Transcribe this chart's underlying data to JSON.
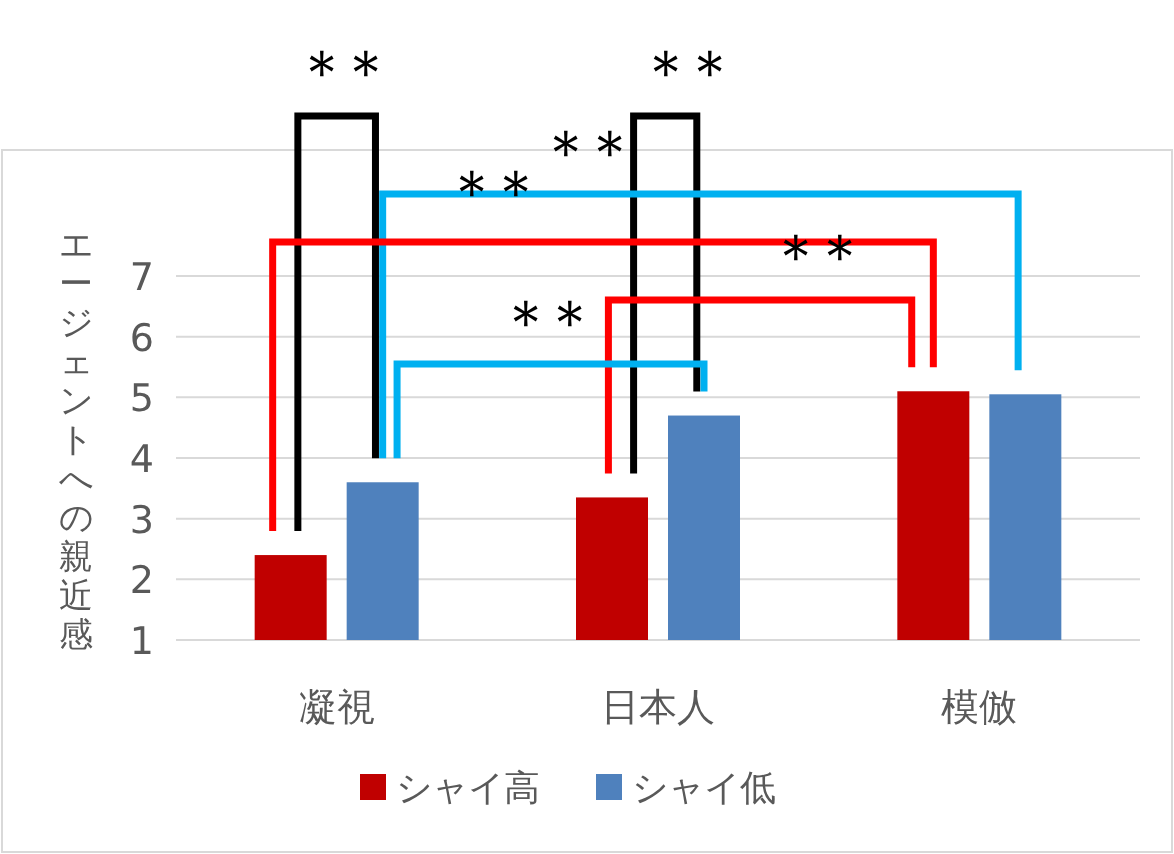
{
  "chart_data": {
    "type": "bar",
    "ylabel": "エージェントへの親近感",
    "categories": [
      "凝視",
      "日本人",
      "模倣"
    ],
    "series": [
      {
        "name": "シャイ高",
        "color": "#c00000",
        "values": [
          2.4,
          3.35,
          5.1
        ]
      },
      {
        "name": "シャイ低",
        "color": "#4f81bd",
        "values": [
          3.6,
          4.7,
          5.05
        ]
      }
    ],
    "ylim": [
      1,
      7
    ],
    "yticks": [
      1,
      2,
      3,
      4,
      5,
      6,
      7
    ],
    "grid": "y",
    "legend": "bottom",
    "annotations": [
      "＊＊",
      "＊＊",
      "＊＊",
      "＊＊",
      "＊＊",
      "＊＊"
    ]
  }
}
